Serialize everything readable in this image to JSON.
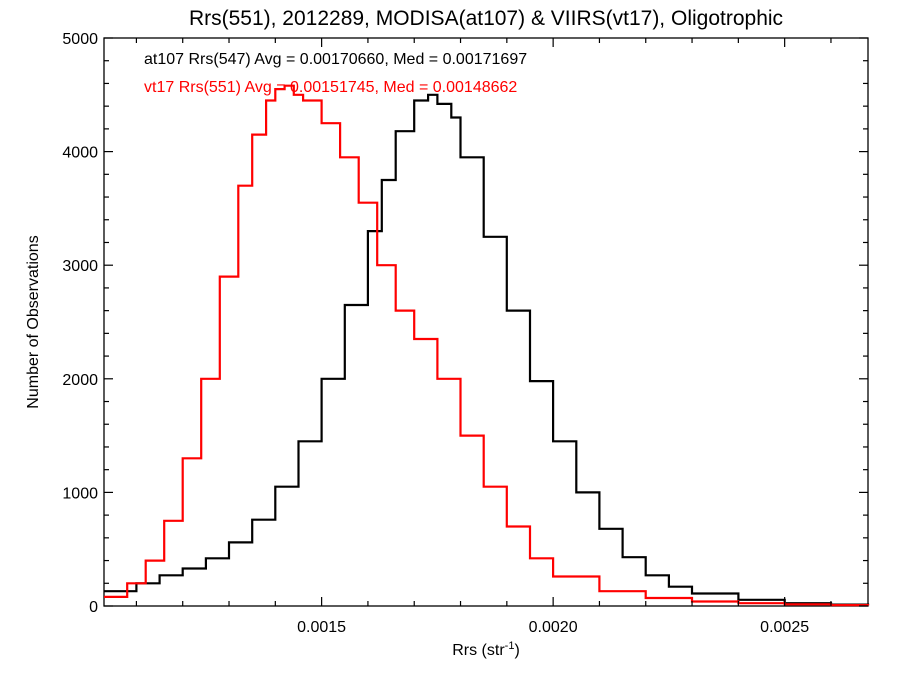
{
  "chart_data": {
    "type": "line",
    "title": "Rrs(551), 2012289, MODISA(at107) & VIIRS(vt17), Oligotrophic",
    "xlabel": "Rrs (str",
    "xlabel_sup": "-1",
    "xlabel_end": ")",
    "ylabel": "Number of Observations",
    "xlim": [
      0.00103,
      0.00268
    ],
    "ylim": [
      0,
      5000
    ],
    "x_ticks": [
      0.0015,
      0.002,
      0.0025
    ],
    "x_tick_labels": [
      "0.0015",
      "0.0020",
      "0.0025"
    ],
    "y_ticks": [
      0,
      1000,
      2000,
      3000,
      4000,
      5000
    ],
    "y_tick_labels": [
      "0",
      "1000",
      "2000",
      "3000",
      "4000",
      "5000"
    ],
    "grid": false,
    "legend_position": "top-left",
    "series": [
      {
        "name": "at107 Rrs(547)",
        "legend_text": "at107 Rrs(547) Avg = 0.00170660, Med = 0.00171697",
        "color": "#000000",
        "x": [
          0.00103,
          0.0011,
          0.00115,
          0.0012,
          0.00125,
          0.0013,
          0.00135,
          0.0014,
          0.00145,
          0.0015,
          0.00155,
          0.0016,
          0.00163,
          0.00166,
          0.0017,
          0.00173,
          0.00175,
          0.00178,
          0.0018,
          0.00185,
          0.0019,
          0.00195,
          0.002,
          0.00205,
          0.0021,
          0.00215,
          0.0022,
          0.00225,
          0.0023,
          0.0024,
          0.0025,
          0.0026,
          0.00268
        ],
        "y": [
          130,
          200,
          270,
          330,
          420,
          560,
          760,
          1050,
          1450,
          2000,
          2650,
          3300,
          3750,
          4180,
          4450,
          4500,
          4420,
          4300,
          3950,
          3250,
          2600,
          1980,
          1450,
          1000,
          680,
          430,
          270,
          170,
          110,
          55,
          25,
          12,
          5
        ]
      },
      {
        "name": "vt17 Rrs(551)",
        "legend_text": "vt17 Rrs(551) Avg = 0.00151745, Med = 0.00148662",
        "color": "#ff0000",
        "x": [
          0.00103,
          0.00108,
          0.00112,
          0.00116,
          0.0012,
          0.00124,
          0.00128,
          0.00132,
          0.00135,
          0.00138,
          0.0014,
          0.00142,
          0.00144,
          0.00146,
          0.0015,
          0.00154,
          0.00158,
          0.00162,
          0.00166,
          0.0017,
          0.00175,
          0.0018,
          0.00185,
          0.0019,
          0.00195,
          0.002,
          0.0021,
          0.0022,
          0.0023,
          0.0024,
          0.0025,
          0.0026,
          0.00268
        ],
        "y": [
          80,
          200,
          400,
          750,
          1300,
          2000,
          2900,
          3700,
          4150,
          4450,
          4550,
          4580,
          4500,
          4450,
          4250,
          3950,
          3550,
          3000,
          2600,
          2350,
          2000,
          1500,
          1050,
          700,
          420,
          260,
          130,
          70,
          40,
          25,
          15,
          8,
          4
        ]
      }
    ]
  }
}
